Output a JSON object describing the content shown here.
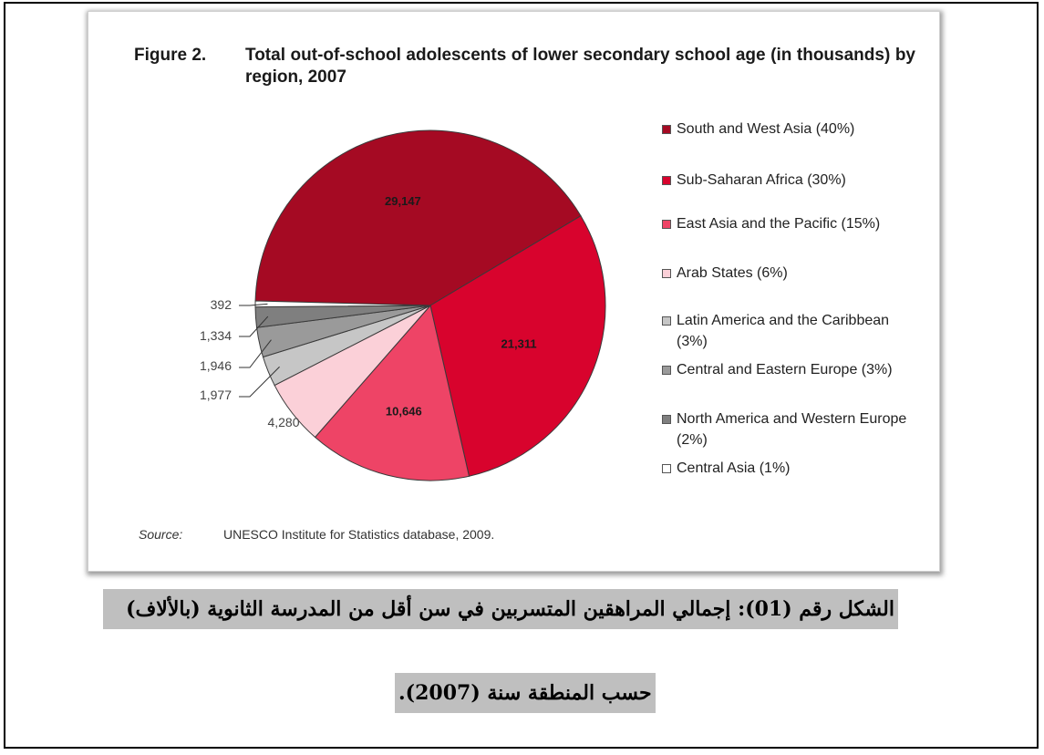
{
  "figure": {
    "label": "Figure 2.",
    "title": "Total out-of-school adolescents of lower secondary school age (in thousands) by region, 2007"
  },
  "chart_data": {
    "type": "pie",
    "title": "Total out-of-school adolescents of lower secondary school age (in thousands) by region, 2007",
    "unit": "thousands",
    "slices": [
      {
        "name": "South and West Asia",
        "value": 29147,
        "label": "29,147",
        "legend": "South and West Asia (40%)",
        "color": "#a50a23"
      },
      {
        "name": "Sub-Saharan Africa",
        "value": 21311,
        "label": "21,311",
        "legend": "Sub-Saharan Africa (30%)",
        "color": "#d8032d"
      },
      {
        "name": "East Asia and the Pacific",
        "value": 10646,
        "label": "10,646",
        "legend": "East Asia and the Pacific (15%)",
        "color": "#ee4466"
      },
      {
        "name": "Arab States",
        "value": 4280,
        "label": "4,280",
        "legend": "Arab States (6%)",
        "color": "#fbd0d8"
      },
      {
        "name": "Latin America and the Caribbean",
        "value": 1977,
        "label": "1,977",
        "legend": "Latin America and the Caribbean (3%)",
        "color": "#c6c6c6"
      },
      {
        "name": "Central and Eastern Europe",
        "value": 1946,
        "label": "1,946",
        "legend": "Central and Eastern Europe (3%)",
        "color": "#9a9a9a"
      },
      {
        "name": "North America and Western Europe",
        "value": 1334,
        "label": "1,334",
        "legend": "North America and Western Europe (2%)",
        "color": "#7f7f7f"
      },
      {
        "name": "Central Asia",
        "value": 392,
        "label": "392",
        "legend": "Central Asia (1%)",
        "color": "#ffffff"
      }
    ],
    "legend_placement": "right"
  },
  "legend": [
    {
      "text": "South and West Asia (40%)",
      "color": "#a50a23"
    },
    {
      "text": "Sub-Saharan Africa (30%)",
      "color": "#d8032d"
    },
    {
      "text": "East Asia and the Pacific (15%)",
      "color": "#ee4466"
    },
    {
      "text": "Arab States (6%)",
      "color": "#fbd0d8"
    },
    {
      "text": "Latin America and the Caribbean (3%)",
      "color": "#c6c6c6"
    },
    {
      "text": "Central and Eastern Europe (3%)",
      "color": "#9a9a9a"
    },
    {
      "text": "North America and Western Europe (2%)",
      "color": "#7f7f7f"
    },
    {
      "text": "Central Asia (1%)",
      "color": "#ffffff"
    }
  ],
  "source": {
    "label": "Source:",
    "text": "UNESCO Institute for Statistics database, 2009."
  },
  "caption": {
    "line1": "الشكل رقم (01): إجمالي المراهقين المتسربين في سن أقل من المدرسة الثانوية (بالألاف)",
    "line2": "حسب المنطقة سنة (2007)."
  }
}
